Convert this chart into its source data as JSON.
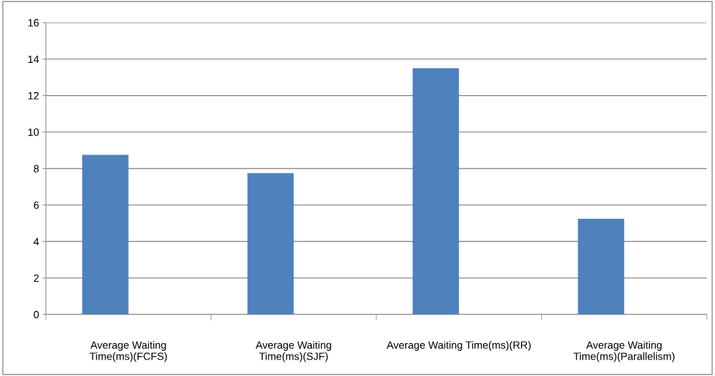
{
  "chart_data": {
    "type": "bar",
    "categories": [
      "Average Waiting\nTime(ms)(FCFS)",
      "Average Waiting\nTime(ms)(SJF)",
      "Average Waiting Time(ms)(RR)",
      "Average Waiting\nTime(ms)(Parallelism)"
    ],
    "values": [
      8.75,
      7.75,
      13.5,
      5.25
    ],
    "color": "#4f81bd",
    "ylim": [
      0,
      16
    ],
    "yticks": [
      0,
      2,
      4,
      6,
      8,
      10,
      12,
      14,
      16
    ],
    "grid": "y",
    "legend": false
  }
}
